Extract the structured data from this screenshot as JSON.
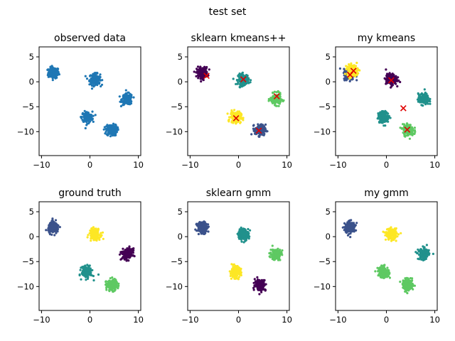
{
  "figure_title": "test set",
  "chart_data": [
    {
      "type": "scatter",
      "title": "observed data",
      "xlim": [
        -10.5,
        10.5
      ],
      "ylim": [
        -14.8,
        7
      ],
      "xticks": [
        -10,
        0,
        10
      ],
      "yticks": [
        5,
        0,
        -5,
        -10
      ],
      "clusters": [
        {
          "x": -7.5,
          "y": 1.8,
          "color": "#1f77b4"
        },
        {
          "x": 1.0,
          "y": 0.5,
          "color": "#1f77b4"
        },
        {
          "x": 7.7,
          "y": -3.5,
          "color": "#1f77b4"
        },
        {
          "x": -0.6,
          "y": -7.1,
          "color": "#1f77b4"
        },
        {
          "x": 4.5,
          "y": -9.7,
          "color": "#1f77b4"
        }
      ],
      "centers": []
    },
    {
      "type": "scatter",
      "title": "sklearn kmeans++",
      "xlim": [
        -10.5,
        10.5
      ],
      "ylim": [
        -14.8,
        7
      ],
      "xticks": [
        -10,
        0,
        10
      ],
      "yticks": [
        5,
        0,
        -5,
        -10
      ],
      "clusters": [
        {
          "x": -7.5,
          "y": 1.8,
          "color": "#440154"
        },
        {
          "x": 1.0,
          "y": 0.5,
          "color": "#21918c"
        },
        {
          "x": 7.7,
          "y": -3.5,
          "color": "#5ec962"
        },
        {
          "x": -0.6,
          "y": -7.1,
          "color": "#fde725"
        },
        {
          "x": 4.5,
          "y": -9.7,
          "color": "#3b528b"
        }
      ],
      "centers": [
        {
          "x": -6.6,
          "y": 1.2
        },
        {
          "x": 1.0,
          "y": 0.5
        },
        {
          "x": 7.9,
          "y": -2.9
        },
        {
          "x": -0.5,
          "y": -7.3
        },
        {
          "x": 4.2,
          "y": -9.8
        }
      ]
    },
    {
      "type": "scatter",
      "title": "my kmeans",
      "xlim": [
        -10.5,
        10.5
      ],
      "ylim": [
        -14.8,
        7
      ],
      "xticks": [
        -10,
        0,
        10
      ],
      "yticks": [
        5,
        0,
        -5,
        -10
      ],
      "clusters": [
        {
          "x": -7.7,
          "y": 1.5,
          "color": "#3b528b"
        },
        {
          "x": -7.0,
          "y": 2.3,
          "color": "#fde725"
        },
        {
          "x": 1.0,
          "y": 0.5,
          "color": "#440154"
        },
        {
          "x": 7.7,
          "y": -3.5,
          "color": "#21918c"
        },
        {
          "x": -0.6,
          "y": -7.1,
          "color": "#21918c"
        },
        {
          "x": 4.5,
          "y": -9.7,
          "color": "#5ec962"
        }
      ],
      "centers": [
        {
          "x": -7.5,
          "y": 1.4
        },
        {
          "x": -6.8,
          "y": 2.2
        },
        {
          "x": 1.0,
          "y": 0.3
        },
        {
          "x": 3.5,
          "y": -5.3
        },
        {
          "x": 4.3,
          "y": -9.6
        }
      ]
    },
    {
      "type": "scatter",
      "title": "ground truth",
      "xlim": [
        -10.5,
        10.5
      ],
      "ylim": [
        -14.8,
        7
      ],
      "xticks": [
        -10,
        0,
        10
      ],
      "yticks": [
        5,
        0,
        -5,
        -10
      ],
      "clusters": [
        {
          "x": -7.5,
          "y": 1.8,
          "color": "#3b528b"
        },
        {
          "x": 1.0,
          "y": 0.5,
          "color": "#fde725"
        },
        {
          "x": 7.7,
          "y": -3.5,
          "color": "#440154"
        },
        {
          "x": -0.6,
          "y": -7.1,
          "color": "#21918c"
        },
        {
          "x": 4.5,
          "y": -9.7,
          "color": "#5ec962"
        }
      ],
      "centers": []
    },
    {
      "type": "scatter",
      "title": "sklearn gmm",
      "xlim": [
        -10.5,
        10.5
      ],
      "ylim": [
        -14.8,
        7
      ],
      "xticks": [
        -10,
        0,
        10
      ],
      "yticks": [
        5,
        0,
        -5,
        -10
      ],
      "clusters": [
        {
          "x": -7.5,
          "y": 1.8,
          "color": "#3b528b"
        },
        {
          "x": 1.0,
          "y": 0.5,
          "color": "#21918c"
        },
        {
          "x": 7.7,
          "y": -3.5,
          "color": "#5ec962"
        },
        {
          "x": -0.6,
          "y": -7.1,
          "color": "#fde725"
        },
        {
          "x": 4.5,
          "y": -9.7,
          "color": "#440154"
        }
      ],
      "centers": []
    },
    {
      "type": "scatter",
      "title": "my gmm",
      "xlim": [
        -10.5,
        10.5
      ],
      "ylim": [
        -14.8,
        7
      ],
      "xticks": [
        -10,
        0,
        10
      ],
      "yticks": [
        5,
        0,
        -5,
        -10
      ],
      "clusters": [
        {
          "x": -7.5,
          "y": 1.8,
          "color": "#3b528b"
        },
        {
          "x": 1.0,
          "y": 0.5,
          "color": "#fde725"
        },
        {
          "x": 7.7,
          "y": -3.5,
          "color": "#21918c"
        },
        {
          "x": -0.6,
          "y": -7.1,
          "color": "#5ec962"
        },
        {
          "x": 4.5,
          "y": -9.7,
          "color": "#5ec962"
        }
      ],
      "centers": []
    }
  ],
  "center_color": "#e00000"
}
